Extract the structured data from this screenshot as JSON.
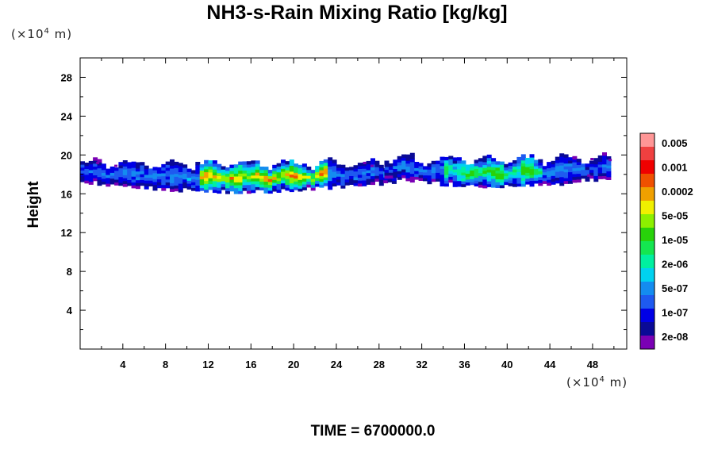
{
  "chart_data": {
    "type": "heatmap",
    "title": "NH3-s-Rain Mixing Ratio [kg/kg]",
    "ylabel": "Height",
    "xlabel": "",
    "unit_y": {
      "base": "(×10",
      "exp": "4",
      "rest": " m)"
    },
    "unit_x": {
      "base": "(×10",
      "exp": "4",
      "rest": " m)"
    },
    "xlim": [
      0,
      51.2
    ],
    "ylim": [
      0,
      30
    ],
    "x_ticks": [
      4,
      8,
      12,
      16,
      20,
      24,
      28,
      32,
      36,
      40,
      44,
      48
    ],
    "y_ticks": [
      4,
      8,
      12,
      16,
      20,
      24,
      28
    ],
    "x_minor_step": 2,
    "y_minor_step": 2,
    "grid": false,
    "colorbar": {
      "placement": "right",
      "labels": [
        "0.005",
        "0.001",
        "0.0002",
        "5e-05",
        "1e-05",
        "2e-06",
        "5e-07",
        "1e-07",
        "2e-08"
      ],
      "colors": [
        "#7a00b4",
        "#0a0a96",
        "#0000e6",
        "#1e5af0",
        "#148cf0",
        "#00d2f0",
        "#00f0a0",
        "#14e650",
        "#28d20a",
        "#8cf000",
        "#f0f000",
        "#f0a000",
        "#f05000",
        "#f00000",
        "#f04040",
        "#ff9696"
      ]
    },
    "bands": [
      {
        "x_start": 0.0,
        "x_end": 29.5,
        "y_bottom": 16.0,
        "y_top": 19.3,
        "core_x_start": 11.0,
        "core_x_end": 23.0,
        "peak": "2e-04"
      },
      {
        "x_start": 28.5,
        "x_end": 49.6,
        "y_bottom": 16.5,
        "y_top": 19.8,
        "core_x_start": 34.0,
        "core_x_end": 43.0,
        "peak": "1e-05"
      }
    ]
  },
  "footer": {
    "time_label": "TIME = 6700000.0"
  }
}
